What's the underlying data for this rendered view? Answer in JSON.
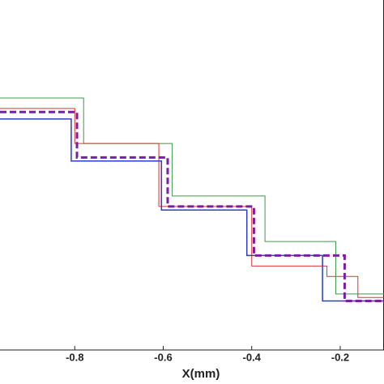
{
  "chart_data": {
    "type": "line",
    "xlabel": "X(mm)",
    "xlim": [
      -0.969,
      -0.101
    ],
    "ylim": [
      0,
      1
    ],
    "xticks": [
      -0.8,
      -0.6,
      -0.4,
      -0.2
    ],
    "series": [
      {
        "color": "#3c9a4a",
        "width": 1,
        "dashed": false,
        "x": [
          -0.969,
          -0.78,
          -0.78,
          -0.58,
          -0.58,
          -0.37,
          -0.37,
          -0.21,
          -0.21,
          -0.101
        ],
        "values": [
          0.72,
          0.72,
          0.59,
          0.59,
          0.44,
          0.44,
          0.31,
          0.31,
          0.16,
          0.16
        ]
      },
      {
        "color": "#e03030",
        "width": 1,
        "dashed": false,
        "x": [
          -0.969,
          -0.8,
          -0.8,
          -0.61,
          -0.61,
          -0.4,
          -0.4,
          -0.23,
          -0.23,
          -0.16,
          -0.16,
          -0.101
        ],
        "values": [
          0.69,
          0.69,
          0.59,
          0.59,
          0.41,
          0.41,
          0.24,
          0.24,
          0.21,
          0.21,
          0.15,
          0.15
        ]
      },
      {
        "color": "#2a3cc8",
        "width": 1.5,
        "dashed": false,
        "x": [
          -0.969,
          -0.808,
          -0.808,
          -0.604,
          -0.604,
          -0.411,
          -0.411,
          -0.24,
          -0.24,
          -0.101
        ],
        "values": [
          0.66,
          0.66,
          0.54,
          0.54,
          0.4,
          0.4,
          0.27,
          0.27,
          0.14,
          0.14
        ]
      },
      {
        "color": "#7a1ea8",
        "width": 3,
        "dashed": true,
        "x": [
          -0.969,
          -0.795,
          -0.795,
          -0.59,
          -0.59,
          -0.395,
          -0.395,
          -0.19,
          -0.19,
          -0.101
        ],
        "values": [
          0.68,
          0.68,
          0.55,
          0.55,
          0.41,
          0.41,
          0.27,
          0.27,
          0.14,
          0.14
        ]
      }
    ]
  }
}
